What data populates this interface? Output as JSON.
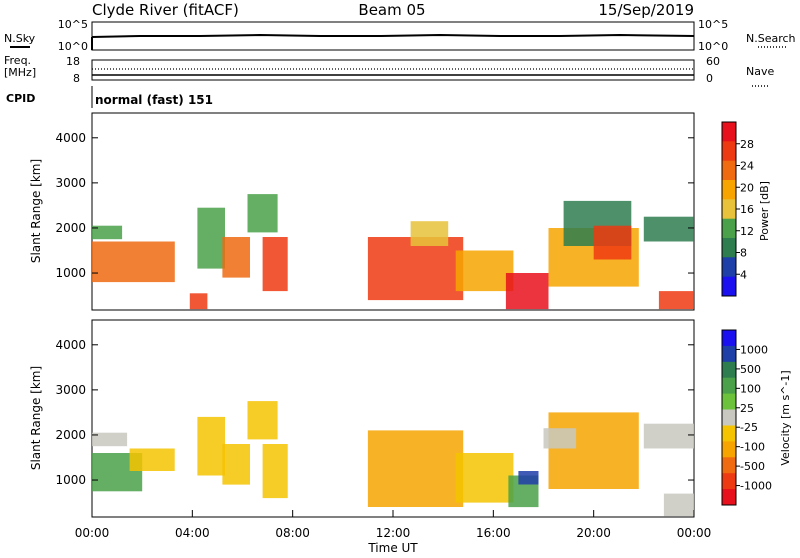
{
  "header": {
    "station": "Clyde River (fitACF)",
    "beam": "Beam 05",
    "date": "15/Sep/2019"
  },
  "status_panels": {
    "nsky_label": "N.Sky",
    "nsearch_label": "N.Search",
    "nsky_ticks": [
      "10^5",
      "10^0"
    ],
    "nsearch_ticks": [
      "10^5",
      "10^0"
    ],
    "freq_label_1": "Freq.",
    "freq_label_2": "[MHz]",
    "freq_ticks": [
      "18",
      "8"
    ],
    "nave_label": "Nave",
    "nave_ticks": [
      "60",
      "0"
    ],
    "cpid_label": "CPID",
    "cpid_text": "normal (fast) 151"
  },
  "x_axis": {
    "label": "Time UT",
    "ticks": [
      "00:00",
      "04:00",
      "08:00",
      "12:00",
      "16:00",
      "20:00",
      "00:00"
    ]
  },
  "power_colorbar": {
    "label": "Power [dB]",
    "ticks": [
      "28",
      "24",
      "20",
      "16",
      "12",
      "8",
      "4"
    ],
    "colors": [
      "#e8101c",
      "#ee3a12",
      "#f06a10",
      "#f7a400",
      "#e8c23a",
      "#4aa14a",
      "#2e7d4f",
      "#1e3ea8",
      "#1a10f0"
    ]
  },
  "velocity_colorbar": {
    "label": "Velocity [m s^-1]",
    "ticks": [
      "1000",
      "500",
      "100",
      "25",
      "-25",
      "-100",
      "-500",
      "-1000"
    ],
    "colors": [
      "#1a10f0",
      "#1e3ea8",
      "#2e7d4f",
      "#4aa14a",
      "#6cc23a",
      "#c8c8c0",
      "#f5c300",
      "#f7a400",
      "#f06a10",
      "#ee3a12",
      "#e8101c"
    ]
  },
  "chart_data": [
    {
      "type": "heatmap",
      "title": "Power",
      "xlabel": "Time UT",
      "ylabel": "Slant Range [km]",
      "x_range": [
        "00:00",
        "24:00"
      ],
      "ylim": [
        180,
        4550
      ],
      "y_ticks": [
        1000,
        2000,
        3000,
        4000
      ],
      "colorbar_label": "Power [dB]",
      "colorbar_range": [
        0,
        32
      ],
      "blobs": [
        {
          "t0": 0.0,
          "t1": 1.2,
          "r0": 1750,
          "r1": 2050,
          "value": 14
        },
        {
          "t0": 0.0,
          "t1": 3.3,
          "r0": 800,
          "r1": 1700,
          "value": 24
        },
        {
          "t0": 3.9,
          "t1": 4.6,
          "r0": 200,
          "r1": 550,
          "value": 28
        },
        {
          "t0": 4.2,
          "t1": 5.3,
          "r0": 1100,
          "r1": 2450,
          "value": 14
        },
        {
          "t0": 5.2,
          "t1": 6.3,
          "r0": 900,
          "r1": 1800,
          "value": 22
        },
        {
          "t0": 6.2,
          "t1": 7.4,
          "r0": 1900,
          "r1": 2750,
          "value": 14
        },
        {
          "t0": 6.8,
          "t1": 7.8,
          "r0": 600,
          "r1": 1800,
          "value": 26
        },
        {
          "t0": 11.0,
          "t1": 14.8,
          "r0": 400,
          "r1": 1800,
          "value": 26
        },
        {
          "t0": 12.7,
          "t1": 14.2,
          "r0": 1600,
          "r1": 2150,
          "value": 16
        },
        {
          "t0": 14.5,
          "t1": 16.8,
          "r0": 600,
          "r1": 1500,
          "value": 20
        },
        {
          "t0": 16.5,
          "t1": 18.2,
          "r0": 200,
          "r1": 1000,
          "value": 30
        },
        {
          "t0": 18.2,
          "t1": 21.8,
          "r0": 700,
          "r1": 2000,
          "value": 18
        },
        {
          "t0": 18.8,
          "t1": 21.5,
          "r0": 1600,
          "r1": 2600,
          "value": 10
        },
        {
          "t0": 20.0,
          "t1": 21.5,
          "r0": 1300,
          "r1": 2050,
          "value": 28
        },
        {
          "t0": 22.0,
          "t1": 24.0,
          "r0": 1700,
          "r1": 2250,
          "value": 10
        },
        {
          "t0": 22.6,
          "t1": 24.0,
          "r0": 200,
          "r1": 600,
          "value": 28
        }
      ]
    },
    {
      "type": "heatmap",
      "title": "Velocity",
      "xlabel": "Time UT",
      "ylabel": "Slant Range [km]",
      "x_range": [
        "00:00",
        "24:00"
      ],
      "ylim": [
        180,
        4550
      ],
      "y_ticks": [
        1000,
        2000,
        3000,
        4000
      ],
      "colorbar_label": "Velocity [m s^-1]",
      "colorbar_range": [
        -1000,
        1000
      ],
      "blobs": [
        {
          "t0": 0.0,
          "t1": 1.4,
          "r0": 1750,
          "r1": 2050,
          "value": 0
        },
        {
          "t0": 0.0,
          "t1": 2.0,
          "r0": 750,
          "r1": 1600,
          "value": 100
        },
        {
          "t0": 1.5,
          "t1": 3.3,
          "r0": 1200,
          "r1": 1700,
          "value": -100
        },
        {
          "t0": 4.2,
          "t1": 5.3,
          "r0": 1100,
          "r1": 2400,
          "value": -100
        },
        {
          "t0": 5.2,
          "t1": 6.3,
          "r0": 900,
          "r1": 1800,
          "value": -100
        },
        {
          "t0": 6.2,
          "t1": 7.4,
          "r0": 1900,
          "r1": 2750,
          "value": -100
        },
        {
          "t0": 6.8,
          "t1": 7.8,
          "r0": 600,
          "r1": 1800,
          "value": -100
        },
        {
          "t0": 11.0,
          "t1": 14.8,
          "r0": 400,
          "r1": 2100,
          "value": -500
        },
        {
          "t0": 14.5,
          "t1": 16.8,
          "r0": 500,
          "r1": 1600,
          "value": -100
        },
        {
          "t0": 16.6,
          "t1": 17.8,
          "r0": 400,
          "r1": 1100,
          "value": 100
        },
        {
          "t0": 17.0,
          "t1": 17.8,
          "r0": 900,
          "r1": 1200,
          "value": 1000
        },
        {
          "t0": 18.2,
          "t1": 21.8,
          "r0": 800,
          "r1": 2500,
          "value": -500
        },
        {
          "t0": 18.0,
          "t1": 19.3,
          "r0": 1700,
          "r1": 2150,
          "value": 0
        },
        {
          "t0": 22.0,
          "t1": 24.0,
          "r0": 1700,
          "r1": 2250,
          "value": 0
        },
        {
          "t0": 22.8,
          "t1": 24.0,
          "r0": 200,
          "r1": 700,
          "value": 0
        }
      ]
    }
  ]
}
